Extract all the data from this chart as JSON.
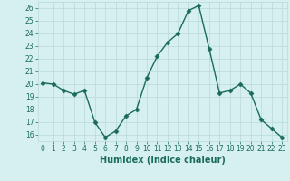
{
  "x": [
    0,
    1,
    2,
    3,
    4,
    5,
    6,
    7,
    8,
    9,
    10,
    11,
    12,
    13,
    14,
    15,
    16,
    17,
    18,
    19,
    20,
    21,
    22,
    23
  ],
  "y": [
    20.1,
    20.0,
    19.5,
    19.2,
    19.5,
    17.0,
    15.8,
    16.3,
    17.5,
    18.0,
    20.5,
    22.2,
    23.3,
    24.0,
    25.8,
    26.2,
    22.8,
    19.3,
    19.5,
    20.0,
    19.3,
    17.2,
    16.5,
    15.8
  ],
  "line_color": "#1a6b5a",
  "marker": "D",
  "marker_size": 2.5,
  "bg_color": "#d6f0f0",
  "grid_color": "#b8d8d8",
  "xlabel": "Humidex (Indice chaleur)",
  "ylim": [
    15.5,
    26.5
  ],
  "xlim": [
    -0.5,
    23.5
  ],
  "yticks": [
    16,
    17,
    18,
    19,
    20,
    21,
    22,
    23,
    24,
    25,
    26
  ],
  "xticks": [
    0,
    1,
    2,
    3,
    4,
    5,
    6,
    7,
    8,
    9,
    10,
    11,
    12,
    13,
    14,
    15,
    16,
    17,
    18,
    19,
    20,
    21,
    22,
    23
  ],
  "tick_fontsize": 5.5,
  "xlabel_fontsize": 7,
  "linewidth": 1.0
}
